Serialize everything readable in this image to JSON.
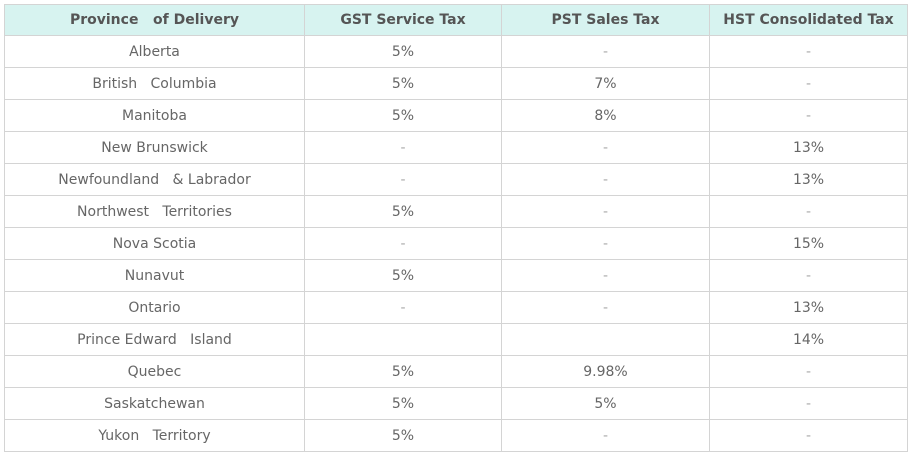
{
  "table": {
    "headers": [
      "Province   of Delivery",
      "GST Service Tax",
      "PST Sales Tax",
      "HST Consolidated Tax"
    ],
    "rows": [
      [
        "Alberta",
        "5%",
        "-",
        "-"
      ],
      [
        "British   Columbia",
        "5%",
        "7%",
        "-"
      ],
      [
        "Manitoba",
        "5%",
        "8%",
        "-"
      ],
      [
        "New Brunswick",
        "-",
        "-",
        "13%"
      ],
      [
        "Newfoundland   & Labrador",
        "-",
        "-",
        "13%"
      ],
      [
        "Northwest   Territories",
        "5%",
        "-",
        "-"
      ],
      [
        "Nova Scotia",
        "-",
        "-",
        "15%"
      ],
      [
        "Nunavut",
        "5%",
        "-",
        "-"
      ],
      [
        "Ontario",
        "-",
        "-",
        "13%"
      ],
      [
        "Prince Edward   Island",
        "",
        "",
        "14%"
      ],
      [
        "Quebec",
        "5%",
        "9.98%",
        "-"
      ],
      [
        "Saskatchewan",
        "5%",
        "5%",
        "-"
      ],
      [
        "Yukon   Territory",
        "5%",
        "-",
        "-"
      ]
    ]
  },
  "colors": {
    "header_bg": "#d7f3f0",
    "border": "#d4d4d4",
    "text": "#666666"
  }
}
